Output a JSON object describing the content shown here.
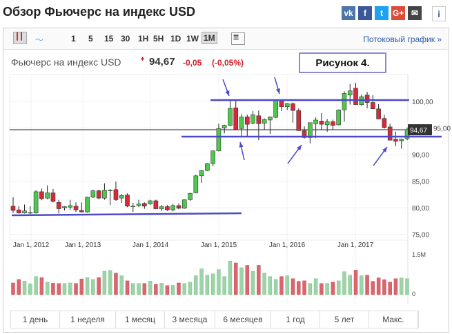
{
  "header": {
    "title": "Обзор Фьючерс на индекс USD",
    "social": [
      {
        "name": "vk",
        "label": "vk",
        "color": "#4a76a8"
      },
      {
        "name": "facebook",
        "label": "f",
        "color": "#3b5998"
      },
      {
        "name": "twitter",
        "label": "t",
        "color": "#1da1f2"
      },
      {
        "name": "google-plus",
        "label": "G+",
        "color": "#dd4b39"
      },
      {
        "name": "email",
        "label": "✉",
        "color": "#444"
      }
    ],
    "info": "i"
  },
  "toolbar": {
    "intervals": [
      "1",
      "5",
      "15",
      "30",
      "1H",
      "5H",
      "1D",
      "1W",
      "1M"
    ],
    "active": "1M",
    "stream_link": "Потоковый график »"
  },
  "quote": {
    "name": "Фьючерс на индекс USD",
    "price": "94,67",
    "change": "-0,05",
    "change_pct": "(-0,05%)",
    "annotation": "Рисунок 4."
  },
  "chart_data": {
    "type": "candlestick",
    "y_ticks": [
      "100,00",
      "95,00",
      "90,00",
      "85,00",
      "80,00",
      "75,00"
    ],
    "ylim": [
      75,
      103.5
    ],
    "x_ticks": [
      "Jan 1, 2012",
      "Jan 1, 2013",
      "Jan 1, 2014",
      "Jan 1, 2015",
      "Jan 1, 2016",
      "Jan 1, 2017"
    ],
    "last_label": "94,67",
    "last": 94.67,
    "up_color": "#4cc94c",
    "down_color": "#d42a3a",
    "ohlc": [
      [
        80.3,
        82,
        79,
        79.5
      ],
      [
        79.6,
        80.3,
        78.9,
        79
      ],
      [
        79,
        80.6,
        78.9,
        79.4
      ],
      [
        79,
        80.3,
        78.8,
        79.1
      ],
      [
        79,
        83.3,
        78.9,
        83
      ],
      [
        83,
        83.6,
        81.4,
        81.7
      ],
      [
        81.8,
        84.2,
        81.6,
        82.8
      ],
      [
        82.8,
        83.5,
        81,
        81.2
      ],
      [
        81,
        81.5,
        78.9,
        79.8
      ],
      [
        80,
        80.3,
        79.5,
        80.2
      ],
      [
        80.1,
        81.5,
        79.6,
        80.4
      ],
      [
        80.3,
        81,
        79.2,
        79.6
      ],
      [
        79.5,
        81,
        79.1,
        79.2
      ],
      [
        79.2,
        82.1,
        79.1,
        82
      ],
      [
        82,
        83.4,
        81.8,
        83.2
      ],
      [
        83.2,
        83.4,
        81.6,
        81.8
      ],
      [
        81.8,
        84.6,
        81.5,
        83.3
      ],
      [
        83.3,
        83.5,
        80.5,
        83.3
      ],
      [
        83.4,
        84.9,
        81.3,
        81.5
      ],
      [
        81.8,
        82.6,
        80.9,
        82.3
      ],
      [
        82.4,
        82.7,
        80.1,
        80.3
      ],
      [
        80.3,
        80.9,
        79.2,
        80.3
      ],
      [
        80.4,
        81.5,
        80.1,
        80.7
      ],
      [
        80.8,
        81,
        79.8,
        80.3
      ],
      [
        80.7,
        81.5,
        80.5,
        81.3
      ],
      [
        81.3,
        81.5,
        79.7,
        79.8
      ],
      [
        79.8,
        80.5,
        79.4,
        80.2
      ],
      [
        80.2,
        80.5,
        79.4,
        79.6
      ],
      [
        79.6,
        80.7,
        79.3,
        80.4
      ],
      [
        80.4,
        80.8,
        79.7,
        79.9
      ],
      [
        79.9,
        81.6,
        79.8,
        81.5
      ],
      [
        81.5,
        82.8,
        81.3,
        82.7
      ],
      [
        82.8,
        86.2,
        82.7,
        86
      ],
      [
        86,
        87.1,
        84.7,
        87
      ],
      [
        87,
        88.4,
        86.9,
        88.3
      ],
      [
        88.3,
        90.8,
        87.8,
        90.7
      ],
      [
        90.7,
        95.8,
        90.6,
        94.9
      ],
      [
        95,
        95.6,
        94,
        95.5
      ],
      [
        95.5,
        100.3,
        95.3,
        98.7
      ],
      [
        98.8,
        100.3,
        94.6,
        94.7
      ],
      [
        94.9,
        97.6,
        93.3,
        97.1
      ],
      [
        97.1,
        97.5,
        93.5,
        95.7
      ],
      [
        95.9,
        98.2,
        95.7,
        97.5
      ],
      [
        97.3,
        98.3,
        92.7,
        95.8
      ],
      [
        95.9,
        96.8,
        94.6,
        96.6
      ],
      [
        96.5,
        97.1,
        93.9,
        97.1
      ],
      [
        97,
        100.3,
        96.9,
        100.3
      ],
      [
        100.3,
        100.3,
        98.2,
        99
      ],
      [
        99,
        99.7,
        98.4,
        99.6
      ],
      [
        99.6,
        99.8,
        96,
        98.3
      ],
      [
        98.3,
        98.7,
        94.5,
        94.5
      ],
      [
        94.5,
        95.3,
        93,
        93.2
      ],
      [
        93.2,
        96,
        92.1,
        96
      ],
      [
        95.8,
        97,
        93.1,
        96.5
      ],
      [
        96.3,
        97.8,
        94.7,
        95.7
      ],
      [
        95.6,
        96.7,
        94.3,
        96.2
      ],
      [
        96.2,
        96.6,
        94.7,
        95.5
      ],
      [
        95.6,
        98.5,
        95.5,
        98.4
      ],
      [
        98.4,
        101.9,
        96.2,
        101.5
      ],
      [
        101.2,
        103.3,
        99.4,
        102
      ],
      [
        102.5,
        103.5,
        99.4,
        99.4
      ],
      [
        99.4,
        101.3,
        99.2,
        100.9
      ],
      [
        101.2,
        101.8,
        98.7,
        99.8
      ],
      [
        99.8,
        101.2,
        98.6,
        98.6
      ],
      [
        98.6,
        99.5,
        96.7,
        96.7
      ],
      [
        96.8,
        97.5,
        94.9,
        95.1
      ],
      [
        95.2,
        95.8,
        92.7,
        92.7
      ],
      [
        92.9,
        94.3,
        91.6,
        92.5
      ],
      [
        92.6,
        93,
        91.1,
        92.9
      ],
      [
        93,
        95.1,
        92.7,
        94.7
      ]
    ],
    "volume_ticks": [
      "1.5M",
      "0"
    ],
    "volume_max": 1.5,
    "volume": [
      0.44,
      0.57,
      0.51,
      0.41,
      0.68,
      0.64,
      0.47,
      0.43,
      0.42,
      0.42,
      0.44,
      0.42,
      0.59,
      0.64,
      0.57,
      0.64,
      0.88,
      0.91,
      0.81,
      0.71,
      0.52,
      0.42,
      0.42,
      0.42,
      0.51,
      0.39,
      0.43,
      0.34,
      0.35,
      0.44,
      0.42,
      0.47,
      0.71,
      0.97,
      0.73,
      0.78,
      0.94,
      0.68,
      1.26,
      1.19,
      1.01,
      1.1,
      0.88,
      1.1,
      0.81,
      0.68,
      0.57,
      0.68,
      0.71,
      0.6,
      0.5,
      0.52,
      0.42,
      0.6,
      0.42,
      0.42,
      0.47,
      0.52,
      0.86,
      0.73,
      0.92,
      0.71,
      0.73,
      0.5,
      0.63,
      0.56,
      0.47,
      0.6,
      0.63,
      0.6
    ],
    "annotation_color": "#4a4ac8"
  },
  "ranges": [
    "1 день",
    "1 неделя",
    "1 месяц",
    "3 месяца",
    "6 месяцев",
    "1 год",
    "5 лет",
    "Макс."
  ]
}
